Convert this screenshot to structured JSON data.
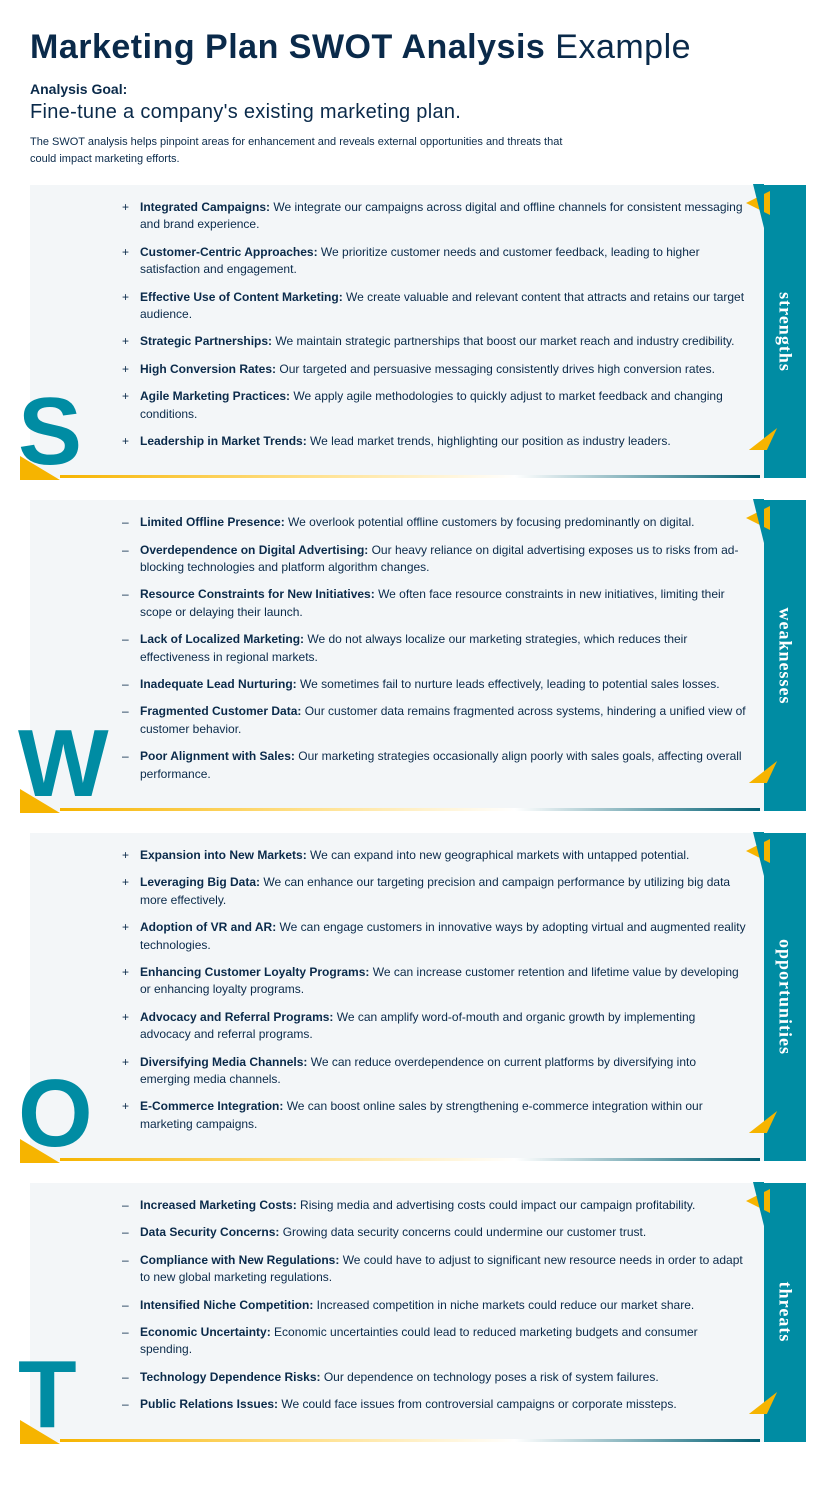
{
  "title_bold": "Marketing Plan SWOT Analysis",
  "title_light": "Example",
  "goal_label": "Analysis Goal:",
  "goal_text": "Fine-tune a company's existing marketing plan.",
  "intro": "The SWOT analysis helps pinpoint areas for enhancement and reveals external opportunities and threats that could impact marketing efforts.",
  "colors": {
    "accent_teal": "#008ca3",
    "accent_yellow": "#f6b400",
    "panel_bg": "#f3f6f8",
    "text": "#0a2a4a"
  },
  "sections": [
    {
      "letter": "S",
      "tab": "strengths",
      "marker": "+",
      "items": [
        {
          "h": "Integrated Campaigns:",
          "t": " We integrate our campaigns across digital and offline channels for consistent messaging and brand experience."
        },
        {
          "h": "Customer-Centric Approaches:",
          "t": " We prioritize customer needs and customer feedback, leading to higher satisfaction and engagement."
        },
        {
          "h": "Effective Use of Content Marketing:",
          "t": " We create valuable and relevant content that attracts and retains our target audience."
        },
        {
          "h": "Strategic Partnerships:",
          "t": " We maintain strategic partnerships that boost our market reach and industry credibility."
        },
        {
          "h": "High Conversion Rates:",
          "t": " Our targeted and persuasive messaging consistently drives high conversion rates."
        },
        {
          "h": "Agile Marketing Practices:",
          "t": " We apply agile methodologies to quickly adjust to market feedback and changing conditions."
        },
        {
          "h": "Leadership in Market Trends:",
          "t": " We lead market trends, highlighting our position as industry leaders."
        }
      ]
    },
    {
      "letter": "W",
      "tab": "weaknesses",
      "marker": "–",
      "items": [
        {
          "h": "Limited Offline Presence:",
          "t": " We overlook potential offline customers by focusing predominantly on digital."
        },
        {
          "h": "Overdependence on Digital Advertising:",
          "t": " Our heavy reliance on digital advertising exposes us to risks from ad-blocking technologies and platform algorithm changes."
        },
        {
          "h": "Resource Constraints for New Initiatives:",
          "t": " We often face resource constraints in new initiatives, limiting their scope or delaying their launch."
        },
        {
          "h": "Lack of Localized Marketing:",
          "t": " We do not always localize our marketing strategies, which reduces their effectiveness in regional markets."
        },
        {
          "h": "Inadequate Lead Nurturing:",
          "t": " We sometimes fail to nurture leads effectively, leading to potential sales losses."
        },
        {
          "h": "Fragmented Customer Data:",
          "t": " Our customer data remains fragmented across systems, hindering a unified view of customer behavior."
        },
        {
          "h": "Poor Alignment with Sales:",
          "t": " Our marketing strategies occasionally align poorly with sales goals, affecting overall performance."
        }
      ]
    },
    {
      "letter": "O",
      "tab": "opportunities",
      "marker": "+",
      "items": [
        {
          "h": "Expansion into New Markets:",
          "t": " We can expand into new geographical markets with untapped potential."
        },
        {
          "h": "Leveraging Big Data:",
          "t": " We can enhance our targeting precision and campaign performance by utilizing big data more effectively."
        },
        {
          "h": "Adoption of VR and AR:",
          "t": " We can engage customers in innovative ways by adopting virtual and augmented reality technologies."
        },
        {
          "h": "Enhancing Customer Loyalty Programs:",
          "t": " We can increase customer retention and lifetime value by developing or enhancing loyalty programs."
        },
        {
          "h": "Advocacy and Referral Programs:",
          "t": " We can amplify word-of-mouth and organic growth by implementing advocacy and referral programs."
        },
        {
          "h": "Diversifying Media Channels:",
          "t": " We can reduce overdependence on current platforms by diversifying into emerging media channels."
        },
        {
          "h": "E-Commerce Integration:",
          "t": " We can boost online sales by strengthening e-commerce integration within our marketing campaigns."
        }
      ]
    },
    {
      "letter": "T",
      "tab": "threats",
      "marker": "–",
      "items": [
        {
          "h": "Increased Marketing Costs:",
          "t": " Rising media and advertising costs could impact our campaign profitability."
        },
        {
          "h": "Data Security Concerns:",
          "t": " Growing data security concerns could undermine our customer trust."
        },
        {
          "h": "Compliance with New Regulations:",
          "t": " We could have to adjust to significant new resource needs in order to adapt to new global marketing regulations."
        },
        {
          "h": "Intensified Niche Competition:",
          "t": " Increased competition in niche markets could reduce our market share."
        },
        {
          "h": "Economic Uncertainty:",
          "t": " Economic uncertainties could lead to reduced marketing budgets and consumer spending."
        },
        {
          "h": "Technology Dependence Risks:",
          "t": " Our dependence on technology poses a risk of system failures."
        },
        {
          "h": "Public Relations Issues:",
          "t": " We could face issues from controversial campaigns or corporate missteps."
        }
      ]
    }
  ]
}
